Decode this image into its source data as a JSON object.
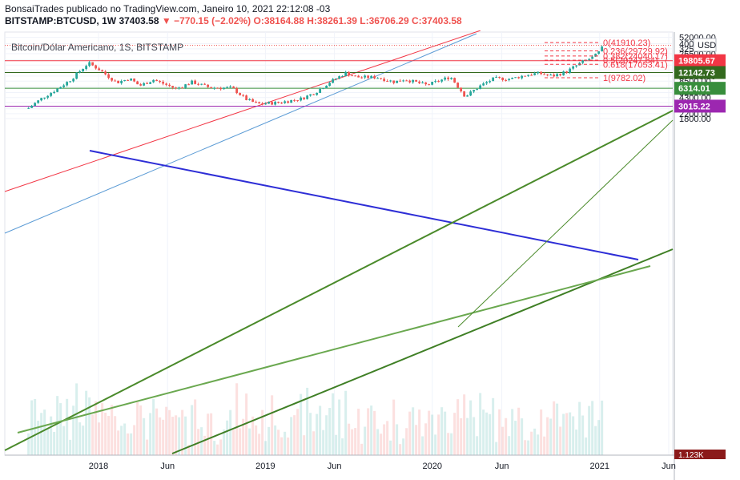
{
  "header": {
    "line1": "BonsaiTrades publicado no TradingView.com, Janeiro 10, 2021 22:12:08 -03",
    "symbol": "BITSTAMP:BTCUSD, 1W",
    "last": "37403.58",
    "change": "▼ −770.15 (−2.02%)",
    "ohlc": "O:38164.88 H:38261.39 L:36706.29 C:37403.58"
  },
  "chart_data": {
    "type": "candlestick",
    "title": "Bitcoin/Dólar Americano, 1S, BITSTAMP",
    "scale": "log",
    "currency": "USD",
    "ylim": [
      1500,
      52000
    ],
    "y_ticks": [
      "52000.00",
      "40000.00",
      "32500.00",
      "26500.00",
      "20500.00",
      "16500.00",
      "13500.00",
      "10500.00",
      "8500.00",
      "6900.00",
      "5300.00",
      "4300.00",
      "3500.00",
      "2700.00",
      "2200.00",
      "1800.00"
    ],
    "x_labels": [
      "2018",
      "Jun",
      "2019",
      "Jun",
      "2020",
      "Jun",
      "2021",
      "Jun"
    ],
    "levels": [
      {
        "label": "19805.67",
        "value": 19805.67,
        "color": "#f23645"
      },
      {
        "label": "12142.73",
        "value": 12142.73,
        "color": "#33691e"
      },
      {
        "label": "6314.01",
        "value": 6314.01,
        "color": "#388e3c"
      },
      {
        "label": "3015.22",
        "value": 3015.22,
        "color": "#9c27b0"
      }
    ],
    "fibonacci": [
      {
        "label": "0(41910.23)",
        "value": 41910.23
      },
      {
        "label": "0.236(29729.92)",
        "value": 29729.92
      },
      {
        "label": "0.382(24040.17)",
        "value": 24040.17
      },
      {
        "label": "0.5(20247.64)",
        "value": 20247.64
      },
      {
        "label": "0.618(17053.41)",
        "value": 17053.41
      },
      {
        "label": "1(9782.02)",
        "value": 9782.02
      }
    ],
    "volume_label": "1.123K",
    "price_path": [
      [
        "2017-08-01",
        2800
      ],
      [
        "2017-09-01",
        4300
      ],
      [
        "2017-10-01",
        6000
      ],
      [
        "2017-11-01",
        9000
      ],
      [
        "2017-12-10",
        18000
      ],
      [
        "2018-01-01",
        14000
      ],
      [
        "2018-02-10",
        8000
      ],
      [
        "2018-03-10",
        9500
      ],
      [
        "2018-04-01",
        7000
      ],
      [
        "2018-05-01",
        9000
      ],
      [
        "2018-06-20",
        6200
      ],
      [
        "2018-07-25",
        8200
      ],
      [
        "2018-09-01",
        6500
      ],
      [
        "2018-10-20",
        6400
      ],
      [
        "2018-11-20",
        4000
      ],
      [
        "2018-12-15",
        3300
      ],
      [
        "2019-02-01",
        3500
      ],
      [
        "2019-03-20",
        4100
      ],
      [
        "2019-04-20",
        5300
      ],
      [
        "2019-05-20",
        8000
      ],
      [
        "2019-06-26",
        12000
      ],
      [
        "2019-07-20",
        10000
      ],
      [
        "2019-09-01",
        10000
      ],
      [
        "2019-10-10",
        8200
      ],
      [
        "2019-11-01",
        9200
      ],
      [
        "2019-12-20",
        7200
      ],
      [
        "2020-02-10",
        10200
      ],
      [
        "2020-03-13",
        4500
      ],
      [
        "2020-04-15",
        7000
      ],
      [
        "2020-05-15",
        9500
      ],
      [
        "2020-06-20",
        9300
      ],
      [
        "2020-07-25",
        11000
      ],
      [
        "2020-08-20",
        11800
      ],
      [
        "2020-09-20",
        10500
      ],
      [
        "2020-10-20",
        12500
      ],
      [
        "2020-11-20",
        18000
      ],
      [
        "2020-12-20",
        23500
      ],
      [
        "2021-01-01",
        29000
      ],
      [
        "2021-01-10",
        37403.58
      ]
    ]
  }
}
